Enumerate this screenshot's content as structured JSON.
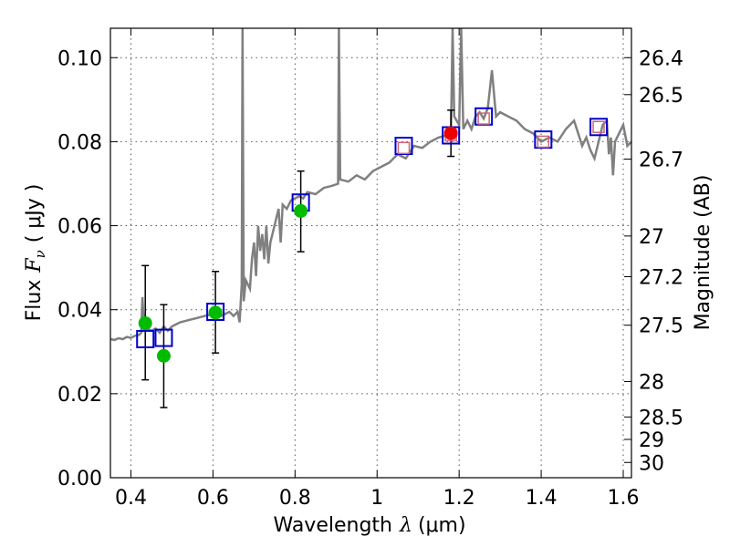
{
  "chart_data": {
    "type": "scatter",
    "xlim": [
      0.35,
      1.62
    ],
    "ylim": [
      0.0,
      0.107
    ],
    "grid": true,
    "xlabel": {
      "text": "Wavelength",
      "symbol": "λ",
      "unit": "(μm)"
    },
    "ylabel": {
      "text": "Flux",
      "symbol": "F",
      "subscript": "ν",
      "unit": "( μJy )"
    },
    "y2label": "Magnitude (AB)",
    "x_ticks": [
      0.4,
      0.6,
      0.8,
      1.0,
      1.2,
      1.4,
      1.6
    ],
    "x_tick_labels": [
      "0.4",
      "0.6",
      "0.8",
      "1",
      "1.2",
      "1.4",
      "1.6"
    ],
    "y_ticks": [
      0.0,
      0.02,
      0.04,
      0.06,
      0.08,
      0.1
    ],
    "y_tick_labels": [
      "0.00",
      "0.02",
      "0.04",
      "0.06",
      "0.08",
      "0.10"
    ],
    "mag_ticks": [
      "26.4",
      "26.5",
      "26.7",
      "27",
      "27.2",
      "27.5",
      "28",
      "28.5",
      "29",
      "30"
    ],
    "colors": {
      "model": "#808080",
      "model_band": "#0000cc",
      "measured": "#00bb00",
      "measured_red": "#ee0000",
      "pink_square": "#cc6677",
      "errorbar": "#000000"
    },
    "model_spectrum": [
      [
        0.35,
        0.033
      ],
      [
        0.36,
        0.0328
      ],
      [
        0.37,
        0.0332
      ],
      [
        0.38,
        0.033
      ],
      [
        0.39,
        0.0335
      ],
      [
        0.4,
        0.0333
      ],
      [
        0.41,
        0.0338
      ],
      [
        0.42,
        0.034
      ],
      [
        0.425,
        0.0345
      ],
      [
        0.428,
        0.043
      ],
      [
        0.432,
        0.035
      ],
      [
        0.44,
        0.0355
      ],
      [
        0.45,
        0.035
      ],
      [
        0.46,
        0.0355
      ],
      [
        0.47,
        0.0345
      ],
      [
        0.48,
        0.036
      ],
      [
        0.49,
        0.035
      ],
      [
        0.5,
        0.036
      ],
      [
        0.51,
        0.0365
      ],
      [
        0.52,
        0.037
      ],
      [
        0.54,
        0.0375
      ],
      [
        0.56,
        0.038
      ],
      [
        0.58,
        0.0385
      ],
      [
        0.6,
        0.039
      ],
      [
        0.62,
        0.0385
      ],
      [
        0.64,
        0.0395
      ],
      [
        0.65,
        0.0385
      ],
      [
        0.66,
        0.0395
      ],
      [
        0.665,
        0.037
      ],
      [
        0.67,
        0.046
      ],
      [
        0.672,
        0.107
      ],
      [
        0.675,
        0.042
      ],
      [
        0.68,
        0.047
      ],
      [
        0.69,
        0.045
      ],
      [
        0.695,
        0.052
      ],
      [
        0.7,
        0.056
      ],
      [
        0.705,
        0.048
      ],
      [
        0.71,
        0.06
      ],
      [
        0.715,
        0.054
      ],
      [
        0.72,
        0.058
      ],
      [
        0.725,
        0.052
      ],
      [
        0.73,
        0.06
      ],
      [
        0.735,
        0.051
      ],
      [
        0.74,
        0.056
      ],
      [
        0.75,
        0.06
      ],
      [
        0.76,
        0.064
      ],
      [
        0.765,
        0.056
      ],
      [
        0.77,
        0.065
      ],
      [
        0.78,
        0.064
      ],
      [
        0.79,
        0.066
      ],
      [
        0.8,
        0.0665
      ],
      [
        0.81,
        0.067
      ],
      [
        0.82,
        0.0665
      ],
      [
        0.83,
        0.068
      ],
      [
        0.85,
        0.0675
      ],
      [
        0.87,
        0.069
      ],
      [
        0.89,
        0.0695
      ],
      [
        0.905,
        0.07
      ],
      [
        0.907,
        0.107
      ],
      [
        0.91,
        0.071
      ],
      [
        0.93,
        0.0705
      ],
      [
        0.95,
        0.072
      ],
      [
        0.97,
        0.071
      ],
      [
        0.99,
        0.073
      ],
      [
        1.01,
        0.074
      ],
      [
        1.03,
        0.075
      ],
      [
        1.05,
        0.077
      ],
      [
        1.07,
        0.076
      ],
      [
        1.09,
        0.079
      ],
      [
        1.11,
        0.0785
      ],
      [
        1.13,
        0.08
      ],
      [
        1.15,
        0.081
      ],
      [
        1.17,
        0.0815
      ],
      [
        1.18,
        0.082
      ],
      [
        1.184,
        0.107
      ],
      [
        1.188,
        0.086
      ],
      [
        1.2,
        0.084
      ],
      [
        1.205,
        0.107
      ],
      [
        1.21,
        0.083
      ],
      [
        1.22,
        0.085
      ],
      [
        1.23,
        0.083
      ],
      [
        1.24,
        0.086
      ],
      [
        1.25,
        0.087
      ],
      [
        1.26,
        0.0855
      ],
      [
        1.27,
        0.088
      ],
      [
        1.28,
        0.097
      ],
      [
        1.29,
        0.086
      ],
      [
        1.3,
        0.087
      ],
      [
        1.32,
        0.086
      ],
      [
        1.34,
        0.085
      ],
      [
        1.36,
        0.083
      ],
      [
        1.38,
        0.082
      ],
      [
        1.4,
        0.08
      ],
      [
        1.42,
        0.081
      ],
      [
        1.44,
        0.08
      ],
      [
        1.46,
        0.083
      ],
      [
        1.48,
        0.085
      ],
      [
        1.49,
        0.082
      ],
      [
        1.5,
        0.079
      ],
      [
        1.51,
        0.081
      ],
      [
        1.52,
        0.078
      ],
      [
        1.53,
        0.076
      ],
      [
        1.54,
        0.08
      ],
      [
        1.55,
        0.084
      ],
      [
        1.56,
        0.085
      ],
      [
        1.565,
        0.077
      ],
      [
        1.57,
        0.081
      ],
      [
        1.575,
        0.072
      ],
      [
        1.58,
        0.08
      ],
      [
        1.59,
        0.082
      ],
      [
        1.6,
        0.084
      ],
      [
        1.61,
        0.079
      ],
      [
        1.62,
        0.08
      ]
    ],
    "model_band_fluxes": [
      {
        "x": 0.435,
        "y": 0.033
      },
      {
        "x": 0.48,
        "y": 0.0333
      },
      {
        "x": 0.606,
        "y": 0.0395
      },
      {
        "x": 0.814,
        "y": 0.0655
      },
      {
        "x": 1.065,
        "y": 0.079
      },
      {
        "x": 1.18,
        "y": 0.0815
      },
      {
        "x": 1.26,
        "y": 0.086
      },
      {
        "x": 1.405,
        "y": 0.0805
      },
      {
        "x": 1.54,
        "y": 0.0835
      }
    ],
    "pink_squares": [
      {
        "x": 1.065,
        "y": 0.0785
      },
      {
        "x": 1.18,
        "y": 0.0815
      },
      {
        "x": 1.26,
        "y": 0.0855
      },
      {
        "x": 1.405,
        "y": 0.08
      },
      {
        "x": 1.54,
        "y": 0.0835
      }
    ],
    "measured_points": [
      {
        "x": 0.435,
        "y": 0.0368,
        "err_low": 0.0135,
        "err_high": 0.0137
      },
      {
        "x": 0.48,
        "y": 0.029,
        "err_low": 0.0123,
        "err_high": 0.0122
      },
      {
        "x": 0.606,
        "y": 0.0393,
        "err_low": 0.0096,
        "err_high": 0.0098
      },
      {
        "x": 0.814,
        "y": 0.0635,
        "err_low": 0.0097,
        "err_high": 0.0095
      }
    ],
    "measured_points_red": [
      {
        "x": 1.18,
        "y": 0.082,
        "err_low": 0.0055,
        "err_high": 0.0055
      }
    ]
  }
}
